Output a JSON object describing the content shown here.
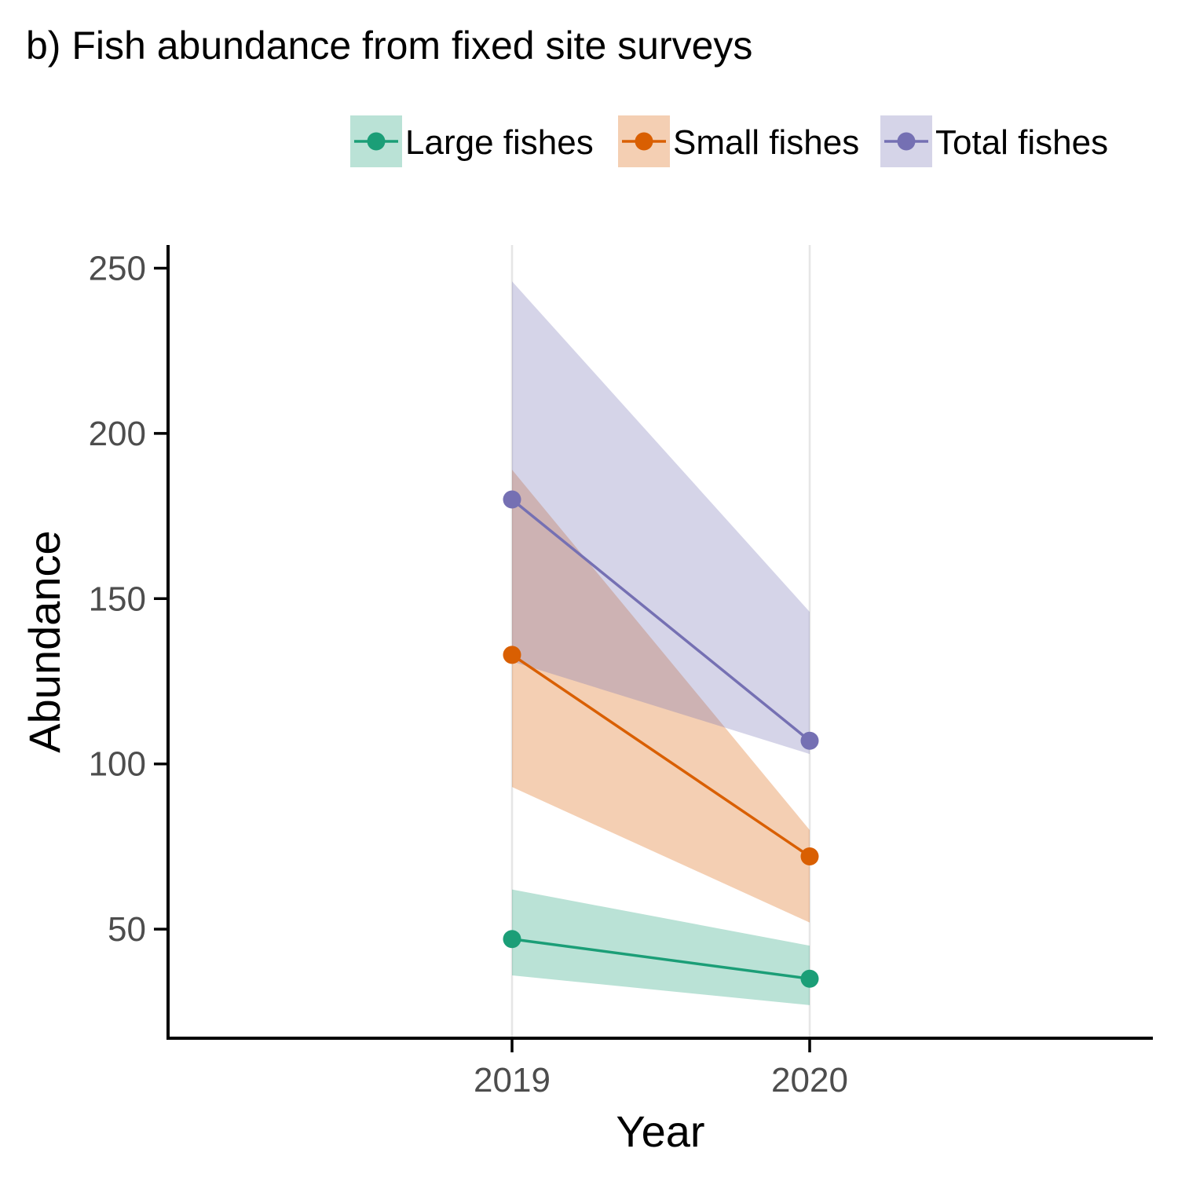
{
  "chart_data": {
    "type": "line",
    "title": "b) Fish abundance from fixed site surveys",
    "xlabel": "Year",
    "ylabel": "Abundance",
    "categories": [
      "2019",
      "2020"
    ],
    "ylim": [
      17,
      257
    ],
    "yticks": [
      50,
      100,
      150,
      200,
      250
    ],
    "grid": "vertical major gridlines only",
    "legend_position": "top-right",
    "series": [
      {
        "name": "Large fishes",
        "color": "#1b9e77",
        "ribbon_color": "#b9e3d7",
        "values": [
          47,
          35
        ],
        "lower": [
          36,
          27
        ],
        "upper": [
          62,
          45
        ]
      },
      {
        "name": "Small fishes",
        "color": "#d95f02",
        "ribbon_color": "#f3cfb3",
        "values": [
          133,
          72
        ],
        "lower": [
          93,
          52
        ],
        "upper": [
          189,
          80
        ]
      },
      {
        "name": "Total fishes",
        "color": "#7570b3",
        "ribbon_color": "#d7d5e8",
        "values": [
          180,
          107
        ],
        "lower": [
          131,
          103
        ],
        "upper": [
          246,
          146
        ]
      }
    ]
  }
}
